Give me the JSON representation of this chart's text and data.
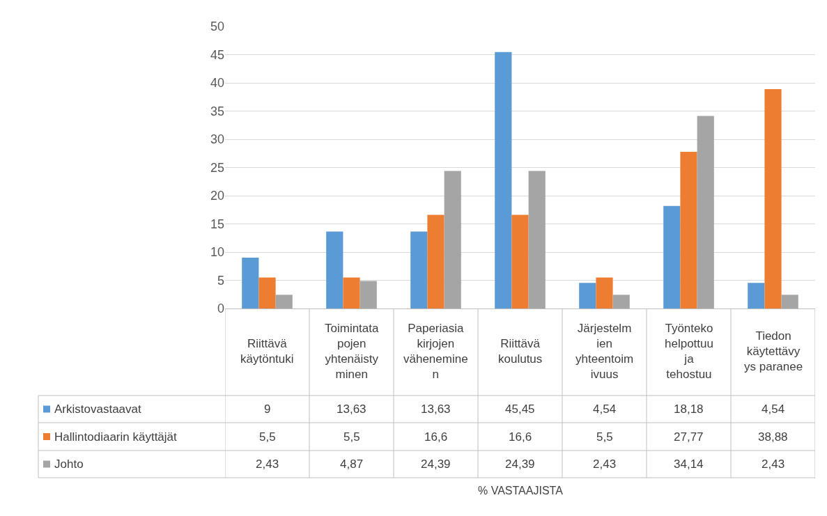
{
  "chart_data": {
    "type": "bar",
    "annotations": [
      "% VASTAAJISTA"
    ],
    "categories": [
      "Riittävä käytöntuki",
      "Toimintatapojen yhtenäistyminen",
      "Paperiasiakirjojen väheneminen",
      "Riittävä koulutus",
      "Järjestelmien yhteentoimivuus",
      "Työnteko helpottuu ja tehostuu",
      "Tiedon käytettävyys paranee"
    ],
    "series": [
      {
        "name": "Arkistovastaavat",
        "color": "#5b9bd5",
        "values": [
          9,
          13.63,
          13.63,
          45.45,
          4.54,
          18.18,
          4.54
        ],
        "value_labels": [
          "9",
          "13,63",
          "13,63",
          "45,45",
          "4,54",
          "18,18",
          "4,54"
        ]
      },
      {
        "name": "Hallintodiaarin käyttäjät",
        "color": "#ed7d31",
        "values": [
          5.5,
          5.5,
          16.6,
          16.6,
          5.5,
          27.77,
          38.88
        ],
        "value_labels": [
          "5,5",
          "5,5",
          "16,6",
          "16,6",
          "5,5",
          "27,77",
          "38,88"
        ]
      },
      {
        "name": "Johto",
        "color": "#a5a5a5",
        "values": [
          2.43,
          4.87,
          24.39,
          24.39,
          2.43,
          34.14,
          2.43
        ],
        "value_labels": [
          "2,43",
          "4,87",
          "24,39",
          "24,39",
          "2,43",
          "34,14",
          "2,43"
        ]
      }
    ],
    "ylim": [
      0,
      50
    ],
    "yticks": [
      0,
      5,
      10,
      15,
      20,
      25,
      30,
      35,
      40,
      45,
      50
    ],
    "grid": "y",
    "legend": "bottom left"
  }
}
